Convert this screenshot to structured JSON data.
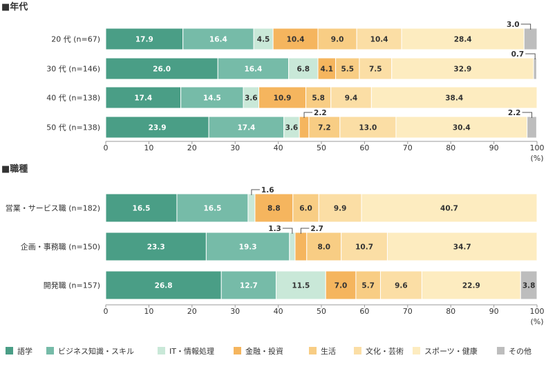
{
  "chart_data": [
    {
      "type": "bar",
      "orientation": "horizontal-stacked-100",
      "title": "■年代",
      "unit_label": "(%)",
      "xlim": [
        0,
        100
      ],
      "ticks": [
        "0",
        "10",
        "20",
        "30",
        "40",
        "50",
        "60",
        "70",
        "80",
        "90",
        "100"
      ],
      "categories": [
        "20 代 (n=67)",
        "30 代 (n=146)",
        "40 代 (n=138)",
        "50 代 (n=138)"
      ],
      "series": [
        {
          "name": "語学",
          "values": [
            17.9,
            26.0,
            17.4,
            23.9
          ]
        },
        {
          "name": "ビジネス知識・スキル",
          "values": [
            16.4,
            16.4,
            14.5,
            17.4
          ]
        },
        {
          "name": "IT・情報処理",
          "values": [
            4.5,
            6.8,
            3.6,
            3.6
          ]
        },
        {
          "name": "金融・投資",
          "values": [
            10.4,
            4.1,
            10.9,
            2.2
          ]
        },
        {
          "name": "生活",
          "values": [
            9.0,
            5.5,
            5.8,
            7.2
          ]
        },
        {
          "name": "文化・芸術",
          "values": [
            10.4,
            7.5,
            9.4,
            13.0
          ]
        },
        {
          "name": "スポーツ・健康",
          "values": [
            28.4,
            32.9,
            38.4,
            30.4
          ]
        },
        {
          "name": "その他",
          "values": [
            3.0,
            0.7,
            0.0,
            2.2
          ]
        }
      ],
      "labels": [
        [
          "17.9",
          "16.4",
          "4.5",
          "10.4",
          "9.0",
          "10.4",
          "28.4",
          "3.0"
        ],
        [
          "26.0",
          "16.4",
          "6.8",
          "4.1",
          "5.5",
          "7.5",
          "32.9",
          "0.7"
        ],
        [
          "17.4",
          "14.5",
          "3.6",
          "10.9",
          "5.8",
          "9.4",
          "38.4",
          ""
        ],
        [
          "23.9",
          "17.4",
          "3.6",
          "2.2",
          "7.2",
          "13.0",
          "30.4",
          "2.2"
        ]
      ],
      "callouts": [
        [
          0,
          7
        ],
        [
          1,
          7
        ],
        [
          3,
          3
        ],
        [
          3,
          7
        ]
      ]
    },
    {
      "type": "bar",
      "orientation": "horizontal-stacked-100",
      "title": "■職種",
      "unit_label": "(%)",
      "xlim": [
        0,
        100
      ],
      "ticks": [
        "0",
        "10",
        "20",
        "30",
        "40",
        "50",
        "60",
        "70",
        "80",
        "90",
        "100"
      ],
      "categories": [
        "営業・サービス職 (n=182)",
        "企画・事務職 (n=150)",
        "開発職 (n=157)"
      ],
      "series": [
        {
          "name": "語学",
          "values": [
            16.5,
            23.3,
            26.8
          ]
        },
        {
          "name": "ビジネス知識・スキル",
          "values": [
            16.5,
            19.3,
            12.7
          ]
        },
        {
          "name": "IT・情報処理",
          "values": [
            1.6,
            1.3,
            11.5
          ]
        },
        {
          "name": "金融・投資",
          "values": [
            8.8,
            2.7,
            7.0
          ]
        },
        {
          "name": "生活",
          "values": [
            6.0,
            8.0,
            5.7
          ]
        },
        {
          "name": "文化・芸術",
          "values": [
            9.9,
            10.7,
            9.6
          ]
        },
        {
          "name": "スポーツ・健康",
          "values": [
            40.7,
            34.7,
            22.9
          ]
        },
        {
          "name": "その他",
          "values": [
            0.0,
            0.0,
            3.8
          ]
        }
      ],
      "labels": [
        [
          "16.5",
          "16.5",
          "1.6",
          "8.8",
          "6.0",
          "9.9",
          "40.7",
          ""
        ],
        [
          "23.3",
          "19.3",
          "1.3",
          "",
          "8.0",
          "10.7",
          "34.7",
          ""
        ],
        [
          "26.8",
          "12.7",
          "11.5",
          "7.0",
          "5.7",
          "9.6",
          "22.9",
          "3.8"
        ]
      ],
      "callouts": [
        [
          0,
          2
        ],
        [
          1,
          2
        ],
        [
          1,
          3
        ]
      ],
      "extra_callouts": [
        {
          "row": 1,
          "series": 3,
          "text": "2.7"
        }
      ]
    }
  ],
  "legend": {
    "items": [
      {
        "name": "語学",
        "color": "#4a9e86"
      },
      {
        "name": "ビジネス知識・スキル",
        "color": "#76bba8"
      },
      {
        "name": "IT・情報処理",
        "color": "#c9e8d8"
      },
      {
        "name": "金融・投資",
        "color": "#f5b55e"
      },
      {
        "name": "生活",
        "color": "#f8cd84"
      },
      {
        "name": "文化・芸術",
        "color": "#fbdea5"
      },
      {
        "name": "スポーツ・健康",
        "color": "#fdecc0"
      },
      {
        "name": "その他",
        "color": "#bdbdbd"
      }
    ]
  },
  "colors": {
    "divider": "#ffffff",
    "axis": "#999999",
    "callout_line": "#555555",
    "text_on_dark": "#ffffff"
  }
}
